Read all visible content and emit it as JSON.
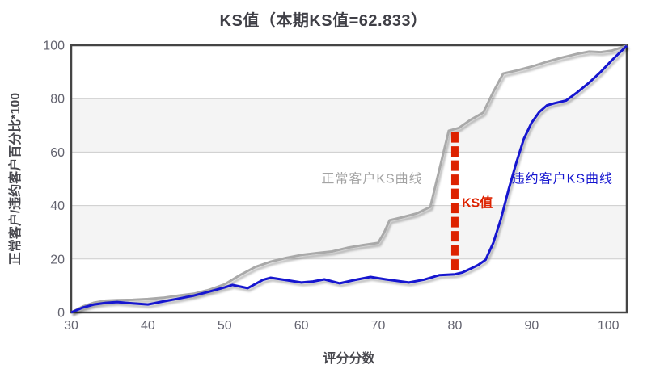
{
  "chart_data": {
    "type": "line",
    "title": "KS值（本期KS值=62.833）",
    "ks_value": "62.833",
    "xlabel": "评分分数",
    "ylabel": "正常客户/违约客户百分比*100",
    "xlim": [
      30,
      102.4
    ],
    "ylim": [
      0,
      100
    ],
    "x_ticks": [
      30,
      40,
      50,
      60,
      70,
      80,
      90,
      100
    ],
    "y_ticks": [
      0,
      20,
      40,
      60,
      80,
      100
    ],
    "grid": "horizontal gridlines with alternating light-gray bands",
    "legend_position": "inline text labels on plot",
    "series": [
      {
        "name": "正常客户KS曲线",
        "color": "#a9a9a9",
        "label_color": "#a3a3a3",
        "label_at": [
          62.6,
          50
        ],
        "points": [
          [
            30,
            0
          ],
          [
            31.5,
            2.2
          ],
          [
            33,
            3.7
          ],
          [
            34.5,
            4.4
          ],
          [
            36,
            4.6
          ],
          [
            38,
            4.7
          ],
          [
            40,
            5
          ],
          [
            42,
            5.5
          ],
          [
            44,
            6.3
          ],
          [
            46,
            7
          ],
          [
            48,
            8.5
          ],
          [
            50,
            10.5
          ],
          [
            52,
            14
          ],
          [
            54,
            17
          ],
          [
            56,
            19
          ],
          [
            58,
            20.4
          ],
          [
            60,
            21.5
          ],
          [
            62,
            22.2
          ],
          [
            64,
            22.8
          ],
          [
            66,
            24.2
          ],
          [
            68,
            25.2
          ],
          [
            70,
            26
          ],
          [
            70.8,
            30
          ],
          [
            71.5,
            34.5
          ],
          [
            73,
            35.5
          ],
          [
            75,
            37
          ],
          [
            76.8,
            39.5
          ],
          [
            79.2,
            68
          ],
          [
            80.5,
            69
          ],
          [
            82,
            72
          ],
          [
            83.7,
            74.8
          ],
          [
            85,
            82.5
          ],
          [
            86.3,
            89.4
          ],
          [
            88,
            90.5
          ],
          [
            90,
            92
          ],
          [
            92,
            93.8
          ],
          [
            94,
            95.4
          ],
          [
            96,
            96.8
          ],
          [
            97.5,
            97.6
          ],
          [
            99,
            97.4
          ],
          [
            100.5,
            98
          ],
          [
            102.4,
            99.8
          ]
        ]
      },
      {
        "name": "违约客户KS曲线",
        "color": "#1414cf",
        "label_color": "#1414cf",
        "label_at": [
          87.4,
          50
        ],
        "points": [
          [
            30,
            0
          ],
          [
            31.5,
            1.8
          ],
          [
            33,
            3
          ],
          [
            34.5,
            3.6
          ],
          [
            36,
            3.9
          ],
          [
            38,
            3.4
          ],
          [
            40,
            3
          ],
          [
            42,
            4.1
          ],
          [
            44,
            5.2
          ],
          [
            46,
            6.3
          ],
          [
            48,
            7.8
          ],
          [
            50,
            9.4
          ],
          [
            51,
            10.3
          ],
          [
            53,
            9.1
          ],
          [
            55,
            12.2
          ],
          [
            56,
            13
          ],
          [
            58,
            12.1
          ],
          [
            60,
            11.2
          ],
          [
            61.5,
            11.6
          ],
          [
            63,
            12.4
          ],
          [
            65,
            10.9
          ],
          [
            67,
            12.2
          ],
          [
            69,
            13.3
          ],
          [
            71,
            12.4
          ],
          [
            74,
            11.2
          ],
          [
            76,
            12.3
          ],
          [
            78,
            14
          ],
          [
            80,
            14.3
          ],
          [
            81,
            15
          ],
          [
            82,
            16.3
          ],
          [
            83,
            17.7
          ],
          [
            84,
            19.7
          ],
          [
            85,
            26
          ],
          [
            86,
            35
          ],
          [
            87,
            46
          ],
          [
            88,
            56
          ],
          [
            89,
            65
          ],
          [
            90,
            71
          ],
          [
            91,
            75
          ],
          [
            92,
            77.5
          ],
          [
            93,
            78.3
          ],
          [
            94.5,
            79.3
          ],
          [
            96,
            82.5
          ],
          [
            97.5,
            86
          ],
          [
            99,
            90
          ],
          [
            100.5,
            94.5
          ],
          [
            102.4,
            99.8
          ]
        ]
      }
    ],
    "annotations": {
      "ks_line": {
        "label": "KS值",
        "color": "#dd2200",
        "x": 80,
        "y_from": 15,
        "y_to": 67.5,
        "label_at": [
          80.9,
          41
        ]
      }
    }
  },
  "colors": {
    "band": "#f4f4f4",
    "gridline": "#cccccc",
    "plot_border": "#454545",
    "tick_text": "#63636f",
    "title_text": "#3f3f46",
    "axis_label_text": "#48484e"
  }
}
